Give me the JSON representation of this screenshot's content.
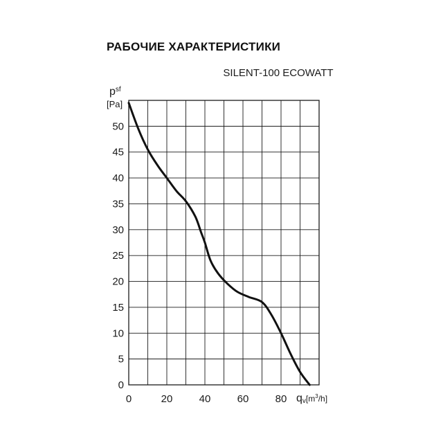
{
  "page": {
    "title": "РАБОЧИЕ ХАРАКТЕРИСТИКИ"
  },
  "chart_data": {
    "type": "line",
    "title": "SILENT-100 ECOWATT",
    "ylabel_main": "p",
    "ylabel_sub": "sf",
    "yunit": "[Pa]",
    "xlabel_main": "q",
    "xlabel_sub": "v",
    "xunit_pre": "[m",
    "xunit_sup": "3",
    "xunit_post": "/h]",
    "xlim": [
      0,
      100
    ],
    "ylim": [
      0,
      55
    ],
    "xticks": [
      0,
      20,
      40,
      60,
      80
    ],
    "yticks": [
      0,
      5,
      10,
      15,
      20,
      25,
      30,
      35,
      40,
      45,
      50
    ],
    "grid_x": [
      0,
      10,
      20,
      30,
      40,
      50,
      60,
      70,
      80,
      90,
      100
    ],
    "grid_y": [
      0,
      5,
      10,
      15,
      20,
      25,
      30,
      35,
      40,
      45,
      50,
      55
    ],
    "series": [
      {
        "color": "#111111",
        "points": [
          [
            0,
            54.5
          ],
          [
            5,
            49.5
          ],
          [
            10,
            45.5
          ],
          [
            15,
            42.5
          ],
          [
            20,
            40
          ],
          [
            25,
            37.5
          ],
          [
            30,
            35.5
          ],
          [
            35,
            32.5
          ],
          [
            38,
            29.5
          ],
          [
            40,
            27.5
          ],
          [
            43,
            24
          ],
          [
            47,
            21.5
          ],
          [
            52,
            19.5
          ],
          [
            57,
            18
          ],
          [
            63,
            17
          ],
          [
            70,
            16
          ],
          [
            75,
            13.5
          ],
          [
            80,
            10
          ],
          [
            85,
            6
          ],
          [
            90,
            2.5
          ],
          [
            95,
            0
          ]
        ]
      }
    ]
  }
}
